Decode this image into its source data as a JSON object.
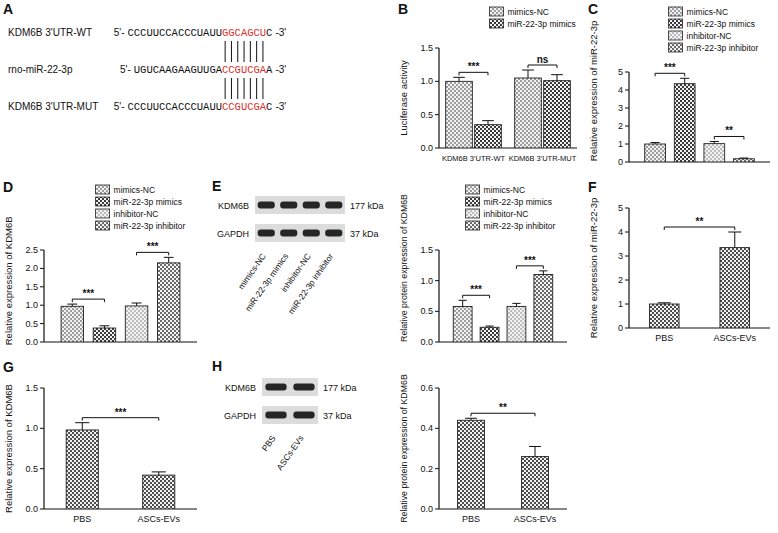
{
  "chart_data": [
    {
      "type": "bar",
      "panel": "B",
      "ylabel": "Luciferase activity",
      "categories": [
        "KDM6B 3'UTR-WT",
        "KDM6B 3'UTR-MUT"
      ],
      "series": [
        {
          "name": "mimics-NC",
          "color": "#9e9e9e",
          "values": [
            1.0,
            1.05
          ],
          "errors": [
            0.06,
            0.12
          ]
        },
        {
          "name": "miR-22-3p mimics",
          "color": "#3a3a3a",
          "values": [
            0.35,
            1.01
          ],
          "errors": [
            0.06,
            0.09
          ]
        }
      ],
      "ylim": [
        0,
        1.5
      ],
      "yticks": [
        {
          "value": 0,
          "label": "0.0"
        },
        0.5,
        {
          "value": 1,
          "label": "1.0"
        },
        1.5
      ],
      "legend": "top-right",
      "comparisons": [
        {
          "bars": [
            0,
            1
          ],
          "label": "***"
        },
        {
          "bars": [
            2,
            3
          ],
          "label": "ns"
        }
      ]
    },
    {
      "type": "bar",
      "panel": "C",
      "ylabel": "Relative expression of miR-22-3p",
      "categories": [
        null
      ],
      "series": [
        {
          "name": "mimics-NC",
          "color": "#9e9e9e",
          "values": [
            1.0
          ],
          "errors": [
            0.08
          ]
        },
        {
          "name": "miR-22-3p mimics",
          "color": "#3a3a3a",
          "values": [
            4.35
          ],
          "errors": [
            0.3
          ]
        },
        {
          "name": "inhibitor-NC",
          "color": "#bdbdbd",
          "values": [
            1.02
          ],
          "errors": [
            0.12
          ]
        },
        {
          "name": "miR-22-3p inhibitor",
          "color": "#6b6b6b",
          "values": [
            0.18
          ],
          "errors": [
            0.04
          ]
        }
      ],
      "ylim": [
        0,
        5
      ],
      "yticks": [
        0,
        1,
        2,
        3,
        4,
        5
      ],
      "tick_labels": "y",
      "legend": "top-right",
      "comparisons": [
        {
          "bars": [
            0,
            1
          ],
          "label": "***"
        },
        {
          "bars": [
            2,
            3
          ],
          "label": "**"
        }
      ]
    },
    {
      "type": "bar",
      "panel": "D",
      "ylabel": "Relative expression of KDM6B",
      "categories": [
        null
      ],
      "series": [
        {
          "name": "mimics-NC",
          "color": "#9e9e9e",
          "values": [
            0.97
          ],
          "errors": [
            0.06
          ]
        },
        {
          "name": "miR-22-3p mimics",
          "color": "#3a3a3a",
          "values": [
            0.38
          ],
          "errors": [
            0.06
          ]
        },
        {
          "name": "inhibitor-NC",
          "color": "#bdbdbd",
          "values": [
            0.98
          ],
          "errors": [
            0.08
          ]
        },
        {
          "name": "miR-22-3p inhibitor",
          "color": "#6b6b6b",
          "values": [
            2.15
          ],
          "errors": [
            0.15
          ]
        }
      ],
      "ylim": [
        0,
        2.5
      ],
      "yticks": [
        {
          "value": 0,
          "label": "0.0"
        },
        0.5,
        {
          "value": 1,
          "label": "1.0"
        },
        1.5,
        {
          "value": 2,
          "label": "2.0"
        },
        2.5
      ],
      "tick_labels": "y",
      "legend": "top-right",
      "comparisons": [
        {
          "bars": [
            0,
            1
          ],
          "label": "***"
        },
        {
          "bars": [
            2,
            3
          ],
          "label": "***"
        }
      ]
    },
    {
      "type": "bar",
      "ylabel": "Relative protein expression of KDM6B",
      "categories": [
        null
      ],
      "series": [
        {
          "name": "mimics-NC",
          "color": "#9e9e9e",
          "values": [
            0.58
          ],
          "errors": [
            0.1
          ]
        },
        {
          "name": "miR-22-3p mimics",
          "color": "#3a3a3a",
          "values": [
            0.24
          ],
          "errors": [
            0.02
          ]
        },
        {
          "name": "inhibitor-NC",
          "color": "#bdbdbd",
          "values": [
            0.58
          ],
          "errors": [
            0.05
          ]
        },
        {
          "name": "miR-22-3p inhibitor",
          "color": "#6b6b6b",
          "values": [
            1.1
          ],
          "errors": [
            0.06
          ]
        }
      ],
      "ylim": [
        0,
        1.5
      ],
      "yticks": [
        {
          "value": 0,
          "label": "0.0"
        },
        0.5,
        {
          "value": 1,
          "label": "1.0"
        },
        1.5
      ],
      "tick_labels": "y",
      "legend": "top-right",
      "comparisons": [
        {
          "bars": [
            0,
            1
          ],
          "label": "***"
        },
        {
          "bars": [
            2,
            3
          ],
          "label": "***"
        }
      ]
    },
    {
      "type": "bar",
      "panel": "F",
      "ylabel": "Relative expression of miR-22-3p",
      "categories": [
        "PBS",
        "ASCs-EVs"
      ],
      "values": [
        1.0,
        3.35
      ],
      "errors": [
        0.05,
        0.65
      ],
      "color": "#4d4d4d",
      "ylim": [
        0,
        5
      ],
      "yticks": [
        0,
        1,
        2,
        3,
        4,
        5
      ],
      "comparisons": [
        {
          "bars": [
            0,
            1
          ],
          "label": "**"
        }
      ]
    },
    {
      "type": "bar",
      "panel": "G",
      "ylabel": "Relative expression of KDM6B",
      "categories": [
        "PBS",
        "ASCs-EVs"
      ],
      "values": [
        0.98,
        0.42
      ],
      "errors": [
        0.09,
        0.04
      ],
      "color": "#4d4d4d",
      "ylim": [
        0,
        1.5
      ],
      "yticks": [
        {
          "value": 0,
          "label": "0.0"
        },
        0.5,
        {
          "value": 1,
          "label": "1.0"
        },
        1.5
      ],
      "comparisons": [
        {
          "bars": [
            0,
            1
          ],
          "label": "***"
        }
      ]
    },
    {
      "type": "bar",
      "ylabel": "Relative protein expression of KDM6B",
      "categories": [
        "PBS",
        "ASCs-EVs"
      ],
      "values": [
        0.44,
        0.26
      ],
      "errors": [
        0.01,
        0.05
      ],
      "color": "#4d4d4d",
      "ylim": [
        0,
        0.6
      ],
      "yticks": [
        {
          "value": 0,
          "label": "0.0"
        },
        0.2,
        0.4,
        0.6
      ],
      "comparisons": [
        {
          "bars": [
            0,
            1
          ],
          "label": "**"
        }
      ]
    }
  ],
  "sequence_diagram": {
    "panel": "A",
    "rows": [
      {
        "label": "KDM6B 3'UTR-WT",
        "five_prime": "5'-",
        "left": "CCCUUCCACCCUAUU",
        "seed": "GGCAGCU",
        "right": "C",
        "three_prime": "-3'"
      },
      {
        "label": "rno-miR-22-3p",
        "five_prime": "5'-",
        "left": "UGUCAAGAAGUUGA",
        "seed": "CCGUCGA",
        "right": "A",
        "three_prime": "-3'"
      },
      {
        "label": "KDM6B 3'UTR-MUT",
        "five_prime": "5'-",
        "left": "CCCUUCCACCCUAUU",
        "seed": "CCGUCGA",
        "right": "C",
        "three_prime": "-3'"
      }
    ]
  },
  "blots": [
    {
      "panel": "E",
      "rows": [
        {
          "protein": "KDM6B",
          "size": "177 kDa"
        },
        {
          "protein": "GAPDH",
          "size": "37 kDa"
        }
      ],
      "lanes": [
        "mimics-NC",
        "miR-22-3p mimics",
        "inhibitor-NC",
        "miR-22-3p inhibitor"
      ]
    },
    {
      "panel": "H",
      "rows": [
        {
          "protein": "KDM6B",
          "size": "177 kDa"
        },
        {
          "protein": "GAPDH",
          "size": "37 kDa"
        }
      ],
      "lanes": [
        "PBS",
        "ASCs-EVs"
      ]
    }
  ]
}
